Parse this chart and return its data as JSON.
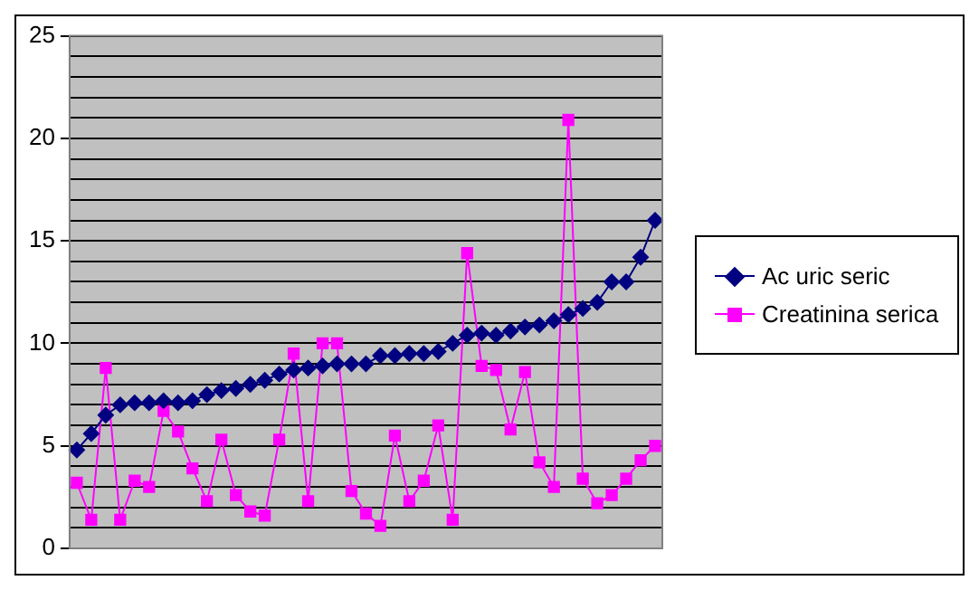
{
  "chart_data": {
    "type": "line",
    "categories": [
      null,
      null,
      null,
      null,
      null,
      null,
      null,
      null,
      null,
      null,
      null,
      null,
      null,
      null,
      null,
      null,
      null,
      null,
      null,
      null,
      null,
      null,
      null,
      null,
      null,
      null,
      null,
      null,
      null,
      null,
      null,
      null,
      null,
      null,
      null,
      null,
      null,
      null,
      null,
      null,
      null
    ],
    "series": [
      {
        "name": "Ac uric seric",
        "color": "#000080",
        "marker": "diamond",
        "values": [
          4.8,
          5.6,
          6.5,
          7.0,
          7.1,
          7.1,
          7.2,
          7.1,
          7.2,
          7.5,
          7.7,
          7.8,
          8.0,
          8.2,
          8.5,
          8.7,
          8.8,
          8.9,
          9.0,
          9.0,
          9.0,
          9.4,
          9.4,
          9.5,
          9.5,
          9.6,
          10.0,
          10.4,
          10.5,
          10.4,
          10.6,
          10.8,
          10.9,
          11.1,
          11.4,
          11.7,
          12.0,
          13.0,
          13.0,
          14.2,
          16.0
        ]
      },
      {
        "name": "Creatinina serica",
        "color": "#ff00ff",
        "marker": "square",
        "values": [
          3.2,
          1.4,
          8.8,
          1.4,
          3.3,
          3.0,
          6.7,
          5.7,
          3.9,
          2.3,
          5.3,
          2.6,
          1.8,
          1.6,
          5.3,
          9.5,
          2.3,
          10.0,
          10.0,
          2.8,
          1.7,
          1.1,
          5.5,
          2.3,
          3.3,
          6.0,
          1.4,
          14.4,
          8.9,
          8.7,
          5.8,
          8.6,
          4.2,
          3.0,
          20.9,
          3.4,
          2.2,
          2.6,
          3.4,
          4.3,
          5.0
        ]
      }
    ],
    "ylim": [
      0,
      25
    ],
    "yticks": [
      0,
      {
        "value": 1,
        "label": null
      },
      {
        "value": 2,
        "label": null
      },
      {
        "value": 3,
        "label": null
      },
      {
        "value": 4,
        "label": null
      },
      5,
      {
        "value": 6,
        "label": null
      },
      {
        "value": 7,
        "label": null
      },
      {
        "value": 8,
        "label": null
      },
      {
        "value": 9,
        "label": null
      },
      10,
      {
        "value": 11,
        "label": null
      },
      {
        "value": 12,
        "label": null
      },
      {
        "value": 13,
        "label": null
      },
      {
        "value": 14,
        "label": null
      },
      15,
      {
        "value": 16,
        "label": null
      },
      {
        "value": 17,
        "label": null
      },
      {
        "value": 18,
        "label": null
      },
      {
        "value": 19,
        "label": null
      },
      20,
      {
        "value": 21,
        "label": null
      },
      {
        "value": 22,
        "label": null
      },
      {
        "value": 23,
        "label": null
      },
      {
        "value": 24,
        "label": null
      },
      25
    ],
    "grid": "y",
    "legend": "right",
    "tick_labels": "y"
  }
}
